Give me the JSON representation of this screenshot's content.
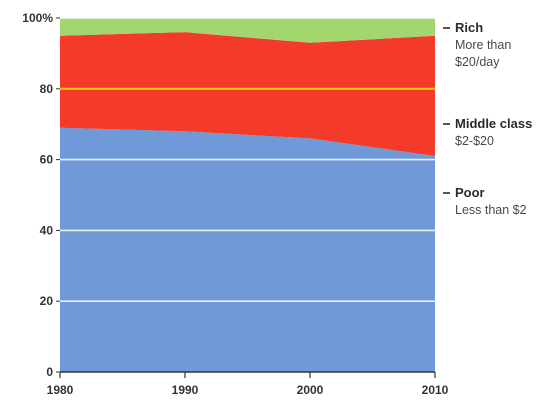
{
  "chart_data": {
    "type": "area",
    "stacked": true,
    "x": [
      1980,
      1990,
      2000,
      2010
    ],
    "series": [
      {
        "name": "Poor",
        "description": "Less than $2",
        "values": [
          69,
          68,
          66,
          61
        ],
        "color": "#7099d8"
      },
      {
        "name": "Middle class",
        "description": "$2-$20",
        "values": [
          26,
          28,
          27,
          34
        ],
        "color": "#f43a28"
      },
      {
        "name": "Rich",
        "description": "More than $20/day",
        "values": [
          5,
          4,
          7,
          5
        ],
        "color": "#a3d66f"
      }
    ],
    "xticks": [
      "1980",
      "1990",
      "2000",
      "2010"
    ],
    "yticks": [
      "0",
      "20",
      "40",
      "60",
      "80",
      "100%"
    ],
    "ytick_values": [
      0,
      20,
      40,
      60,
      80,
      100
    ],
    "ylim": [
      0,
      100
    ],
    "xlim": [
      1980,
      2010
    ],
    "gridlines": true,
    "gridline_color": "#ffffff",
    "highlight_gridline_value": 80,
    "highlight_gridline_color": "#f7c51e",
    "legend_placement": "right",
    "title": "",
    "xlabel": "",
    "ylabel": ""
  }
}
